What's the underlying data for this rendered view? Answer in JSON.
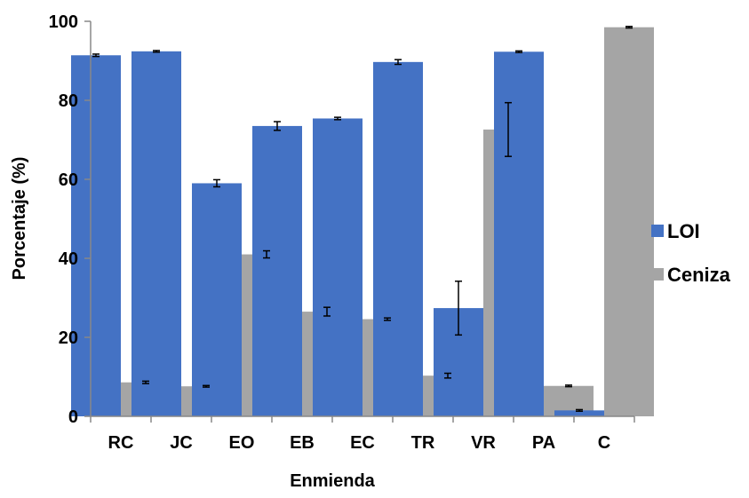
{
  "chart_data": {
    "type": "bar",
    "title": "",
    "xlabel": "Enmienda",
    "ylabel": "Porcentaje (%)",
    "ylim": [
      0,
      100
    ],
    "yticks": [
      "0",
      "20",
      "40",
      "60",
      "80",
      "100"
    ],
    "grid": false,
    "legend_position": "right",
    "categories": [
      "RC",
      "JC",
      "EO",
      "EB",
      "EC",
      "TR",
      "VR",
      "PA",
      "C"
    ],
    "series": [
      {
        "name": "LOI",
        "color": "#4472C4",
        "values": [
          91.4,
          92.4,
          59.0,
          73.5,
          75.4,
          89.7,
          27.4,
          92.3,
          1.5
        ],
        "errors": [
          0.3,
          0.2,
          0.9,
          1.1,
          0.3,
          0.6,
          6.8,
          0.2,
          0.2
        ]
      },
      {
        "name": "Ceniza",
        "color": "#A5A5A5",
        "values": [
          8.6,
          7.6,
          41.0,
          26.5,
          24.6,
          10.3,
          72.6,
          7.7,
          98.5
        ],
        "errors": [
          0.3,
          0.2,
          0.9,
          1.1,
          0.3,
          0.6,
          6.8,
          0.2,
          0.2
        ]
      }
    ]
  }
}
